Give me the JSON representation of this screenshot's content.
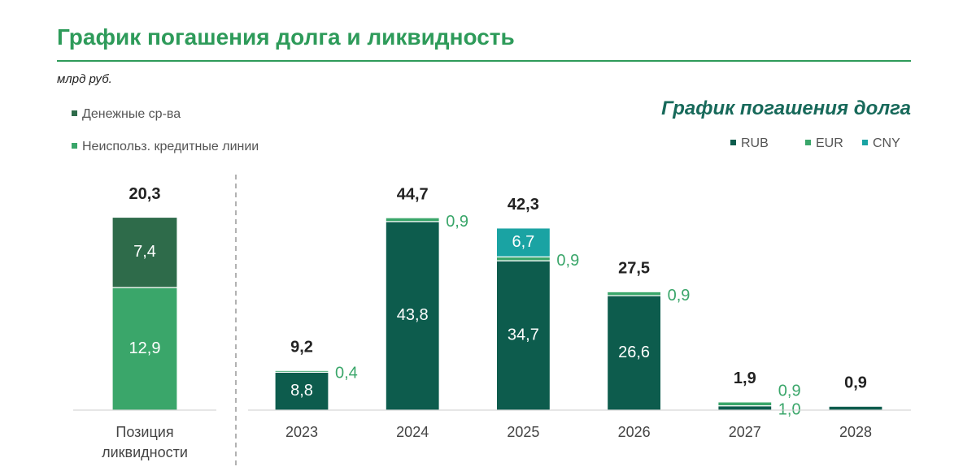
{
  "header": {
    "title": "График погашения долга и ликвидность",
    "unit": "млрд руб."
  },
  "chart_data": [
    {
      "type": "stacked-bar",
      "categories": [
        "Позиция ликвидности"
      ],
      "series": [
        {
          "name": "Неиспольз. кредитные линии",
          "color": "#3aa66a",
          "values": [
            12.9
          ],
          "value_labels": [
            "12,9"
          ]
        },
        {
          "name": "Денежные ср-ва",
          "color": "#2e6b4a",
          "values": [
            7.4
          ],
          "value_labels": [
            "7,4"
          ]
        }
      ],
      "totals": [
        20.3
      ],
      "total_labels": [
        "20,3"
      ],
      "legend": "top-left"
    },
    {
      "type": "stacked-bar",
      "title": "График погашения долга",
      "categories": [
        "2023",
        "2024",
        "2025",
        "2026",
        "2027",
        "2028"
      ],
      "series": [
        {
          "name": "RUB",
          "color": "#0d5c4d",
          "values": [
            8.8,
            43.8,
            34.7,
            26.6,
            1.0,
            0.9
          ],
          "value_labels": [
            "8,8",
            "43,8",
            "34,7",
            "26,6",
            "1,0",
            null
          ]
        },
        {
          "name": "EUR",
          "color": "#3aa66a",
          "values": [
            0.4,
            0.9,
            0.9,
            0.9,
            0.9,
            null
          ],
          "value_labels": [
            "0,4",
            "0,9",
            "0,9",
            "0,9",
            "0,9",
            null
          ]
        },
        {
          "name": "CNY",
          "color": "#1aa3a3",
          "values": [
            null,
            null,
            6.7,
            null,
            null,
            null
          ],
          "value_labels": [
            null,
            null,
            "6,7",
            null,
            null,
            null
          ]
        }
      ],
      "totals": [
        9.2,
        44.7,
        42.3,
        27.5,
        1.9,
        0.9
      ],
      "total_labels": [
        "9,2",
        "44,7",
        "42,3",
        "27,5",
        "1,9",
        "0,9"
      ],
      "legend": "top-right"
    }
  ]
}
